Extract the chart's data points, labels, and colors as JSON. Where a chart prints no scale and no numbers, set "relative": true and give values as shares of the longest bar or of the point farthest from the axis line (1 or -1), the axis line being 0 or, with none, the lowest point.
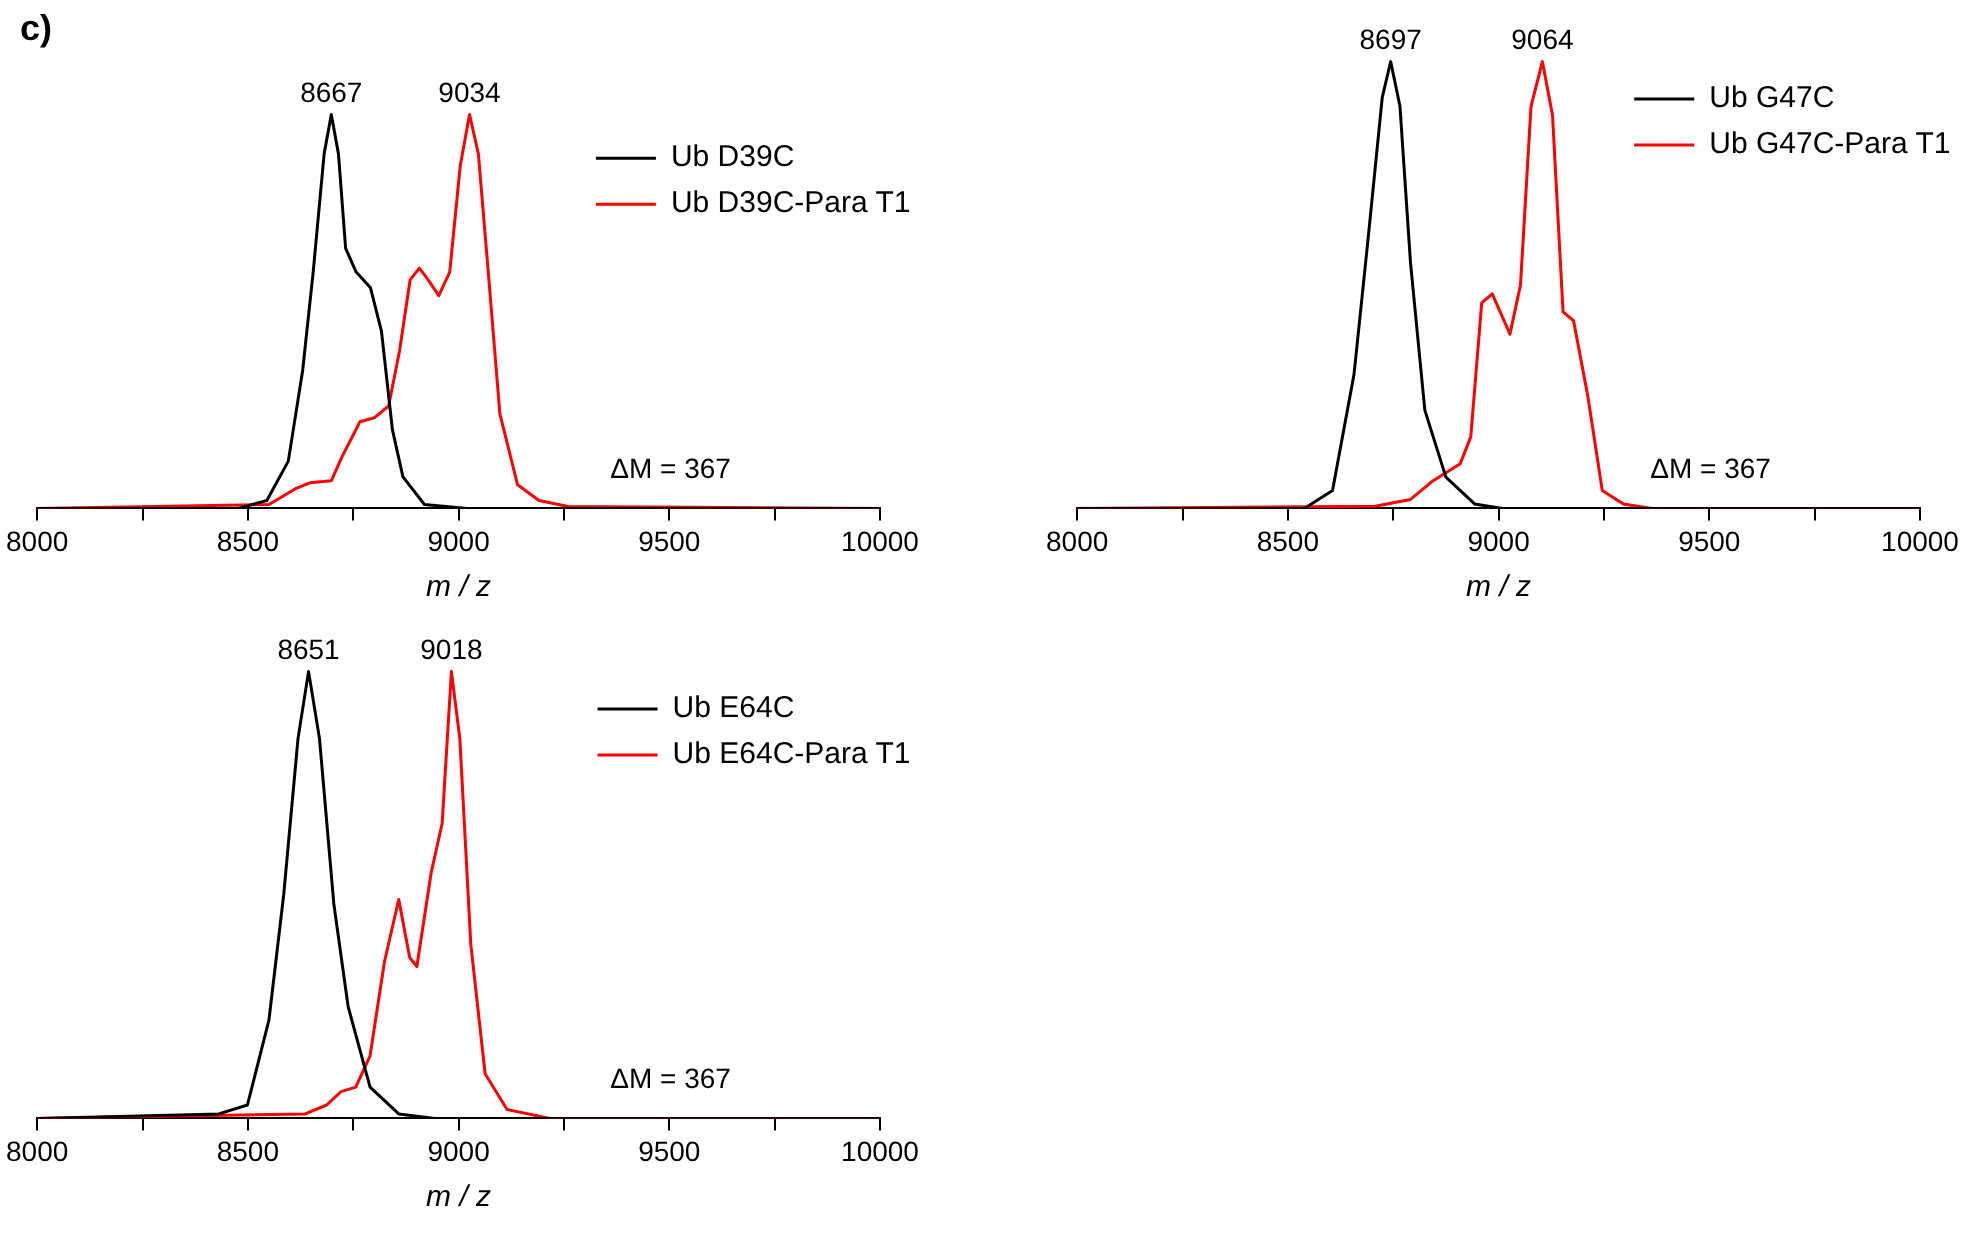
{
  "chart_data": [
    {
      "type": "line",
      "title": "c)",
      "xlabel": "m / z",
      "relative": true,
      "legend": "top right",
      "grid": false,
      "marker": "none",
      "line_style": "solid",
      "xlim": [
        8000,
        10000
      ],
      "xticks": [
        8000,
        {
          "value": 8250,
          "label": null
        },
        8500,
        {
          "value": 8750,
          "label": null
        },
        9000,
        {
          "value": 9250,
          "label": null
        },
        9500,
        {
          "value": 9750,
          "label": null
        },
        10000
      ],
      "annotations": [
        {
          "text": "8667",
          "x": 8698,
          "y": 1
        },
        {
          "text": "9034",
          "x": 9026,
          "y": 1
        },
        "ΔM = 367"
      ],
      "series": [
        {
          "name": "Ub D39C",
          "color": "#000000",
          "x": [
            8000,
            8477,
            8545,
            8596,
            8630,
            8655,
            8681,
            8698,
            8715,
            8732,
            8757,
            8791,
            8817,
            8843,
            8868,
            8919,
            9021,
            10000
          ],
          "values": [
            0,
            0,
            0.02,
            0.12,
            0.35,
            0.6,
            0.9,
            1,
            0.9,
            0.66,
            0.6,
            0.56,
            0.45,
            0.2,
            0.08,
            0.01,
            0,
            0
          ]
        },
        {
          "name": "Ub D39C-Para T1",
          "color": "#ff0000",
          "x": [
            8000,
            8550,
            8613,
            8647,
            8698,
            8723,
            8766,
            8800,
            8834,
            8860,
            8885,
            8907,
            8928,
            8953,
            8979,
            9004,
            9026,
            9047,
            9072,
            9098,
            9140,
            9191,
            9260,
            10000
          ],
          "values": [
            0,
            0.01,
            0.05,
            0.065,
            0.07,
            0.13,
            0.22,
            0.23,
            0.26,
            0.4,
            0.58,
            0.61,
            0.58,
            0.54,
            0.6,
            0.87,
            1,
            0.9,
            0.58,
            0.24,
            0.06,
            0.02,
            0.005,
            0
          ]
        }
      ]
    },
    {
      "type": "line",
      "xlabel": "m / z",
      "relative": true,
      "legend": "top right",
      "grid": false,
      "marker": "none",
      "line_style": "solid",
      "xlim": [
        8000,
        10000
      ],
      "xticks": [
        8000,
        {
          "value": 8250,
          "label": null
        },
        8500,
        {
          "value": 8750,
          "label": null
        },
        9000,
        {
          "value": 9250,
          "label": null
        },
        9500,
        {
          "value": 9750,
          "label": null
        },
        10000
      ],
      "annotations": [
        {
          "text": "8697",
          "x": 8744,
          "y": 1
        },
        {
          "text": "9064",
          "x": 9104,
          "y": 1
        },
        "ΔM = 367"
      ],
      "series": [
        {
          "name": "Ub G47C",
          "color": "#000000",
          "x": [
            8000,
            8539,
            8606,
            8657,
            8690,
            8724,
            8744,
            8766,
            8791,
            8825,
            8875,
            8943,
            9010,
            10000
          ],
          "values": [
            0,
            0,
            0.04,
            0.3,
            0.6,
            0.92,
            1,
            0.9,
            0.55,
            0.22,
            0.07,
            0.01,
            0,
            0
          ]
        },
        {
          "name": "Ub G47C-Para T1",
          "color": "#ff0000",
          "x": [
            8000,
            8707,
            8791,
            8842,
            8909,
            8934,
            8960,
            8985,
            9027,
            9052,
            9077,
            9104,
            9128,
            9153,
            9178,
            9212,
            9246,
            9296,
            9364,
            10000
          ],
          "values": [
            0,
            0.005,
            0.02,
            0.06,
            0.1,
            0.16,
            0.46,
            0.48,
            0.39,
            0.5,
            0.9,
            1,
            0.88,
            0.44,
            0.42,
            0.25,
            0.04,
            0.01,
            0,
            0
          ]
        }
      ]
    },
    {
      "type": "line",
      "xlabel": "m / z",
      "relative": true,
      "legend": "top right",
      "grid": false,
      "marker": "none",
      "line_style": "solid",
      "xlim": [
        8000,
        10000
      ],
      "xticks": [
        8000,
        {
          "value": 8250,
          "label": null
        },
        8500,
        {
          "value": 8750,
          "label": null
        },
        9000,
        {
          "value": 9250,
          "label": null
        },
        9500,
        {
          "value": 9750,
          "label": null
        },
        10000
      ],
      "annotations": [
        {
          "text": "8651",
          "x": 8644,
          "y": 1
        },
        {
          "text": "9018",
          "x": 8983,
          "y": 1
        },
        "ΔM = 367"
      ],
      "series": [
        {
          "name": "Ub E64C",
          "color": "#000000",
          "x": [
            8000,
            8431,
            8499,
            8550,
            8585,
            8619,
            8644,
            8670,
            8704,
            8738,
            8790,
            8858,
            8944,
            10000
          ],
          "values": [
            0,
            0.01,
            0.03,
            0.22,
            0.5,
            0.85,
            1,
            0.85,
            0.48,
            0.25,
            0.07,
            0.01,
            0,
            0
          ]
        },
        {
          "name": "Ub E64C-Para T1",
          "color": "#ff0000",
          "x": [
            8000,
            8636,
            8687,
            8721,
            8756,
            8790,
            8824,
            8858,
            8884,
            8901,
            8935,
            8961,
            8983,
            9003,
            9029,
            9063,
            9115,
            9217,
            10000
          ],
          "values": [
            0,
            0.01,
            0.03,
            0.06,
            0.07,
            0.14,
            0.35,
            0.49,
            0.36,
            0.34,
            0.55,
            0.66,
            1,
            0.85,
            0.39,
            0.1,
            0.02,
            0,
            0
          ]
        }
      ]
    }
  ]
}
